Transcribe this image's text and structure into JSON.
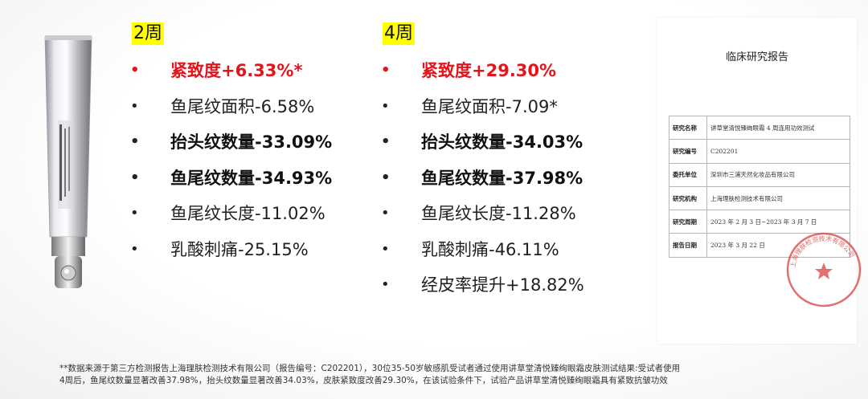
{
  "colors": {
    "highlight": "#ffff00",
    "accent_red": "#e3141b",
    "stamp_red": "#d94040"
  },
  "product": {
    "icon": "eye-cream-tube-icon"
  },
  "col_2w": {
    "title": "2周",
    "items": [
      {
        "text": "紧致度+6.33%*"
      },
      {
        "text": "鱼尾纹面积-6.58%"
      },
      {
        "text": "抬头纹数量-33.09%"
      },
      {
        "text": "鱼尾纹数量-34.93%"
      },
      {
        "text": "鱼尾纹长度-11.02%"
      },
      {
        "text": "乳酸刺痛-25.15%"
      }
    ]
  },
  "col_4w": {
    "title": "4周",
    "items": [
      {
        "text": "紧致度+29.30%"
      },
      {
        "text": "鱼尾纹面积-7.09*"
      },
      {
        "text": "抬头纹数量-34.03%"
      },
      {
        "text": "鱼尾纹数量-37.98%"
      },
      {
        "text": "鱼尾纹长度-11.28%"
      },
      {
        "text": "乳酸刺痛-46.11%"
      },
      {
        "text": "经皮率提升+18.82%"
      }
    ]
  },
  "report": {
    "title": "临床研究报告",
    "rows": [
      {
        "key": "研究名称",
        "value": "讲草堂清悦臻绚眼霜 4 周连用功效测试"
      },
      {
        "key": "研究编号",
        "value": "C202201"
      },
      {
        "key": "委托单位",
        "value": "深圳市三浦天然化妆品有限公司"
      },
      {
        "key": "研究机构",
        "value": "上海理肤检测技术有限公司"
      },
      {
        "key": "研究周期",
        "value": "2023 年 2 月 3 日~2023 年 3 月 7 日"
      },
      {
        "key": "报告日期",
        "value": "2023 年 3 月 22 日"
      }
    ],
    "stamp_icon": "company-seal-icon",
    "stamp_text": "上海理肤检测技术有限公司"
  },
  "footnote": {
    "line1": "**数据来源于第三方检测报告上海理肤检测技术有限公司（报告编号：C202201），30位35-50岁敏感肌受试者通过使用讲草堂清悦臻绚眼霜皮肤测试结果:受试者使用",
    "line2": "4周后，鱼尾纹数量显著改善37.98%，抬头纹数量显著改善34.03%，皮肤紧致度改善29.30%，在该试验条件下，试验产品讲草堂清悦臻绚眼霜具有紧致抗皱功效"
  }
}
